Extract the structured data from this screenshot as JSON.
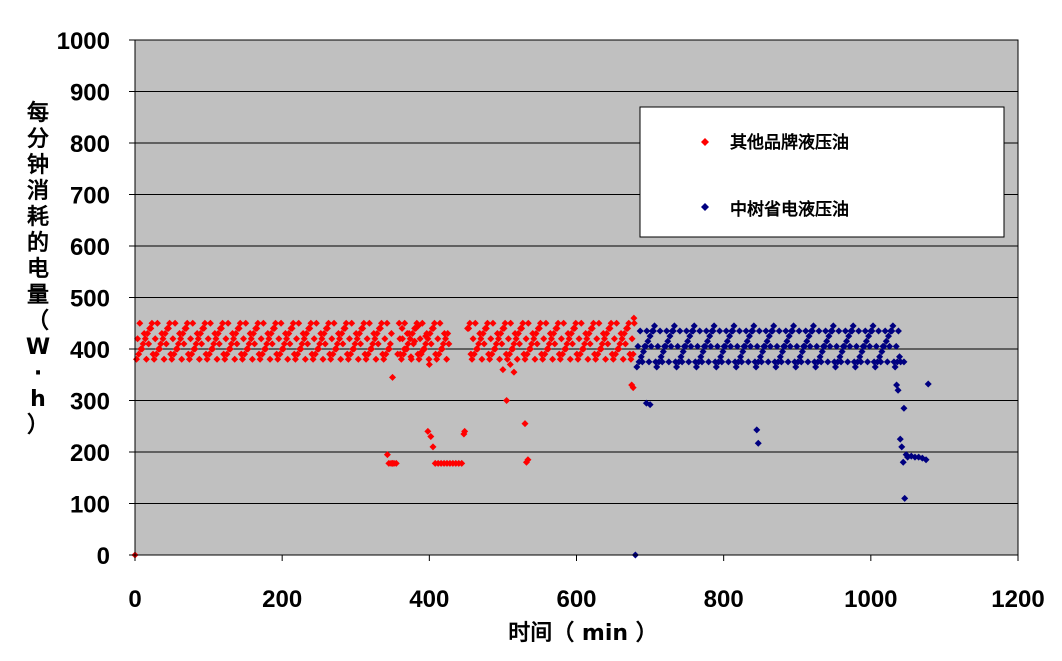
{
  "chart_data": {
    "type": "scatter",
    "xlabel": "时间（ min ）",
    "ylabel": "每分钟消耗的电量（W·h）",
    "xlim": [
      0,
      1200
    ],
    "ylim": [
      0,
      1000
    ],
    "x_ticks": [
      "0",
      "200",
      "400",
      "600",
      "800",
      "1000",
      "1200"
    ],
    "y_ticks": [
      "0",
      "100",
      "200",
      "300",
      "400",
      "500",
      "600",
      "700",
      "800",
      "900",
      "1000"
    ],
    "grid": "horizontal",
    "legend_position": "top-right",
    "background_color": "#c0c0c0",
    "series": [
      {
        "name": "其他品牌液压油",
        "color": "#ff0000",
        "marker": "diamond",
        "band": {
          "x_range": [
            2,
            678
          ],
          "y_values": [
            380,
            390,
            400,
            410,
            420,
            430,
            440,
            450
          ],
          "gaps": [
            [
              348,
              358
            ],
            [
              428,
              450
            ]
          ]
        },
        "points": [
          [
            0,
            0
          ],
          [
            343,
            195
          ],
          [
            345,
            178
          ],
          [
            348,
            178
          ],
          [
            350,
            178
          ],
          [
            352,
            178
          ],
          [
            355,
            178
          ],
          [
            350,
            345
          ],
          [
            357,
            390
          ],
          [
            360,
            420
          ],
          [
            363,
            440
          ],
          [
            366,
            400
          ],
          [
            370,
            430
          ],
          [
            375,
            385
          ],
          [
            380,
            415
          ],
          [
            385,
            445
          ],
          [
            390,
            395
          ],
          [
            395,
            425
          ],
          [
            398,
            240
          ],
          [
            400,
            370
          ],
          [
            402,
            230
          ],
          [
            405,
            210
          ],
          [
            408,
            178
          ],
          [
            412,
            178
          ],
          [
            416,
            178
          ],
          [
            420,
            178
          ],
          [
            424,
            178
          ],
          [
            428,
            178
          ],
          [
            432,
            178
          ],
          [
            436,
            178
          ],
          [
            440,
            178
          ],
          [
            444,
            178
          ],
          [
            447,
            235
          ],
          [
            448,
            240
          ],
          [
            500,
            360
          ],
          [
            505,
            300
          ],
          [
            510,
            370
          ],
          [
            515,
            355
          ],
          [
            530,
            255
          ],
          [
            532,
            180
          ],
          [
            534,
            185
          ],
          [
            675,
            330
          ],
          [
            677,
            325
          ],
          [
            678,
            460
          ]
        ]
      },
      {
        "name": "中树省电液压油",
        "color": "#000080",
        "marker": "diamond",
        "band": {
          "x_range": [
            682,
            1040
          ],
          "y_values": [
            365,
            375,
            385,
            395,
            405,
            415,
            425,
            435,
            445
          ],
          "gaps": []
        },
        "points": [
          [
            680,
            0
          ],
          [
            695,
            295
          ],
          [
            700,
            292
          ],
          [
            845,
            243
          ],
          [
            847,
            217
          ],
          [
            1035,
            330
          ],
          [
            1037,
            320
          ],
          [
            1040,
            225
          ],
          [
            1042,
            210
          ],
          [
            1044,
            180
          ],
          [
            1045,
            285
          ],
          [
            1046,
            110
          ],
          [
            1048,
            195
          ],
          [
            1050,
            190
          ],
          [
            1055,
            192
          ],
          [
            1060,
            190
          ],
          [
            1065,
            190
          ],
          [
            1070,
            188
          ],
          [
            1075,
            185
          ],
          [
            1078,
            332
          ],
          [
            1045,
            375
          ]
        ]
      }
    ]
  }
}
